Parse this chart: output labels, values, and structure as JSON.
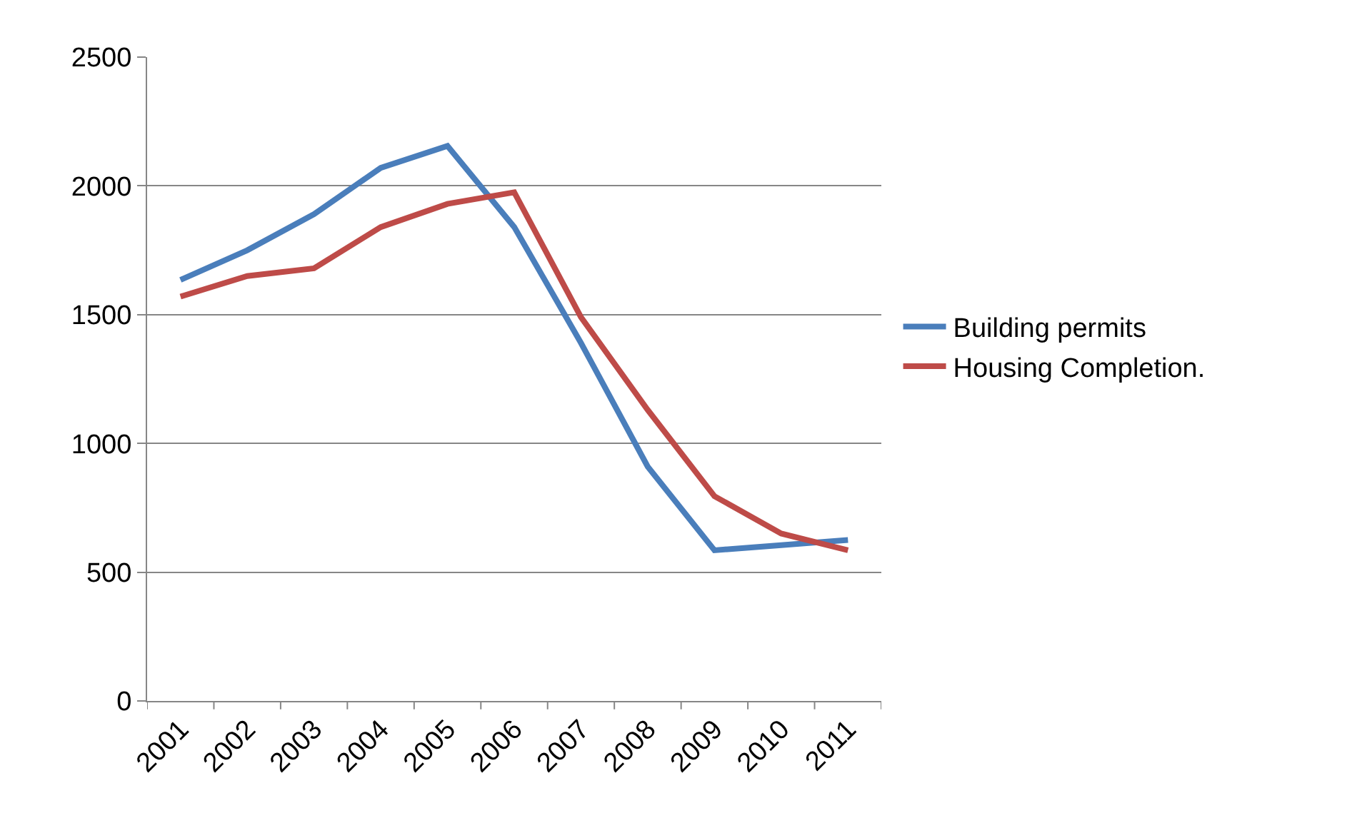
{
  "chart_data": {
    "type": "line",
    "categories": [
      "2001",
      "2002",
      "2003",
      "2004",
      "2005",
      "2006",
      "2007",
      "2008",
      "2009",
      "2010",
      "2011"
    ],
    "series": [
      {
        "name": "Building permits",
        "color": "#4a7ebb",
        "values": [
          1635,
          1750,
          1890,
          2070,
          2155,
          1840,
          1390,
          910,
          585,
          605,
          625
        ]
      },
      {
        "name": "Housing Completion.",
        "color": "#be4b48",
        "values": [
          1570,
          1650,
          1680,
          1840,
          1930,
          1975,
          1490,
          1130,
          795,
          650,
          585
        ]
      }
    ],
    "ylim": [
      0,
      2500
    ],
    "yticks": [
      0,
      500,
      1000,
      1500,
      2000,
      2500
    ],
    "grid": "y",
    "legend": "right",
    "marker": "none",
    "line_style": "solid"
  }
}
